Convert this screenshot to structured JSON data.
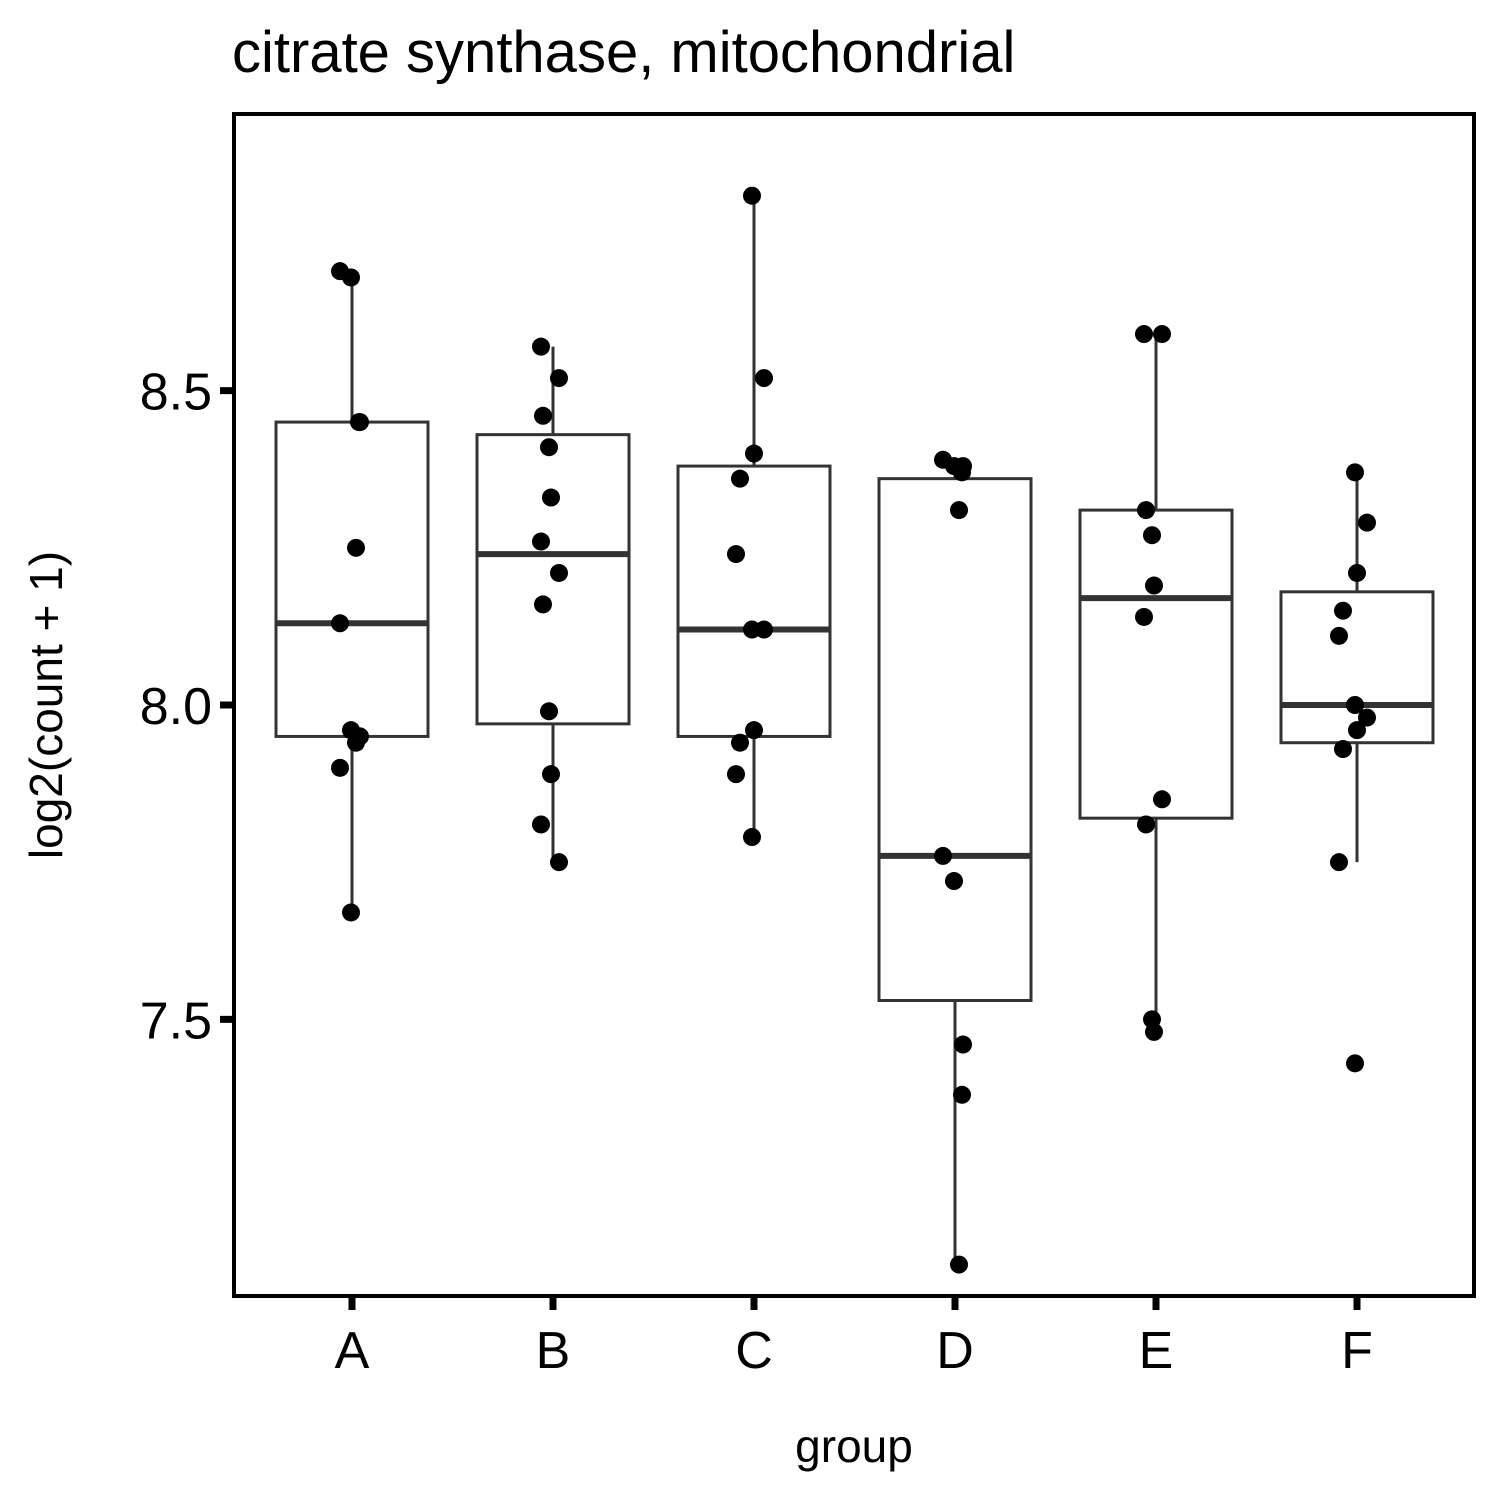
{
  "chart_data": {
    "type": "boxplot",
    "title": "citrate synthase, mitochondrial",
    "xlabel": "group",
    "ylabel": "log2(count + 1)",
    "ylim": [
      7.06,
      8.94
    ],
    "yticks": [
      "7.5",
      "8.0",
      "8.5"
    ],
    "grid": false,
    "categories": [
      "A",
      "B",
      "C",
      "D",
      "E",
      "F"
    ],
    "boxes": [
      {
        "group": "A",
        "whisker_low": 7.67,
        "q1": 7.95,
        "median": 8.13,
        "q3": 8.45,
        "whisker_high": 8.68
      },
      {
        "group": "B",
        "whisker_low": 7.75,
        "q1": 7.97,
        "median": 8.24,
        "q3": 8.43,
        "whisker_high": 8.57
      },
      {
        "group": "C",
        "whisker_low": 7.79,
        "q1": 7.95,
        "median": 8.12,
        "q3": 8.38,
        "whisker_high": 8.81
      },
      {
        "group": "D",
        "whisker_low": 7.11,
        "q1": 7.53,
        "median": 7.76,
        "q3": 8.36,
        "whisker_high": 8.39
      },
      {
        "group": "E",
        "whisker_low": 7.48,
        "q1": 7.82,
        "median": 8.17,
        "q3": 8.31,
        "whisker_high": 8.59
      },
      {
        "group": "F",
        "whisker_low": 7.75,
        "q1": 7.94,
        "median": 8.0,
        "q3": 8.18,
        "whisker_high": 8.37
      }
    ],
    "points": [
      {
        "group": "A",
        "values": [
          8.69,
          8.68,
          8.45,
          8.45,
          8.25,
          8.13,
          7.96,
          7.95,
          7.95,
          7.94,
          7.9,
          7.67
        ]
      },
      {
        "group": "B",
        "values": [
          8.57,
          8.52,
          8.46,
          8.41,
          8.33,
          8.26,
          8.21,
          8.16,
          7.99,
          7.89,
          7.81,
          7.75
        ]
      },
      {
        "group": "C",
        "values": [
          8.81,
          8.52,
          8.4,
          8.36,
          8.24,
          8.12,
          8.12,
          7.96,
          7.94,
          7.89,
          7.79
        ]
      },
      {
        "group": "D",
        "values": [
          8.39,
          8.38,
          8.38,
          8.37,
          8.31,
          7.76,
          7.72,
          7.46,
          7.38,
          7.11
        ]
      },
      {
        "group": "E",
        "values": [
          8.59,
          8.59,
          8.31,
          8.27,
          8.19,
          8.14,
          7.85,
          7.81,
          7.5,
          7.48
        ]
      },
      {
        "group": "F",
        "values": [
          8.37,
          8.29,
          8.21,
          8.15,
          8.11,
          8.0,
          7.98,
          7.96,
          7.93,
          7.75,
          7.43
        ]
      }
    ]
  }
}
